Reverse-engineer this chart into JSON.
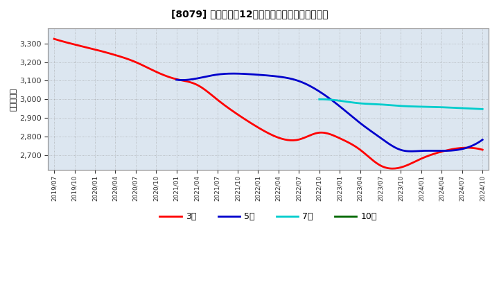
{
  "title": "[8079] 当期純利益12か月移動合計の平均値の推移",
  "ylabel": "（百万円）",
  "background_color": "#ffffff",
  "plot_bg_color": "#dce6f0",
  "grid_color": "#999999",
  "ylim": [
    2620,
    3380
  ],
  "yticks": [
    2700,
    2800,
    2900,
    3000,
    3100,
    3200,
    3300
  ],
  "x_labels": [
    "2019/07",
    "2019/10",
    "2020/01",
    "2020/04",
    "2020/07",
    "2020/10",
    "2021/01",
    "2021/04",
    "2021/07",
    "2021/10",
    "2022/01",
    "2022/04",
    "2022/07",
    "2022/10",
    "2023/01",
    "2023/04",
    "2023/07",
    "2023/10",
    "2024/01",
    "2024/04",
    "2024/07",
    "2024/10"
  ],
  "series_3y": {
    "label": "3年",
    "color": "#ff0000",
    "values": [
      3325,
      3295,
      3268,
      3238,
      3200,
      3148,
      3108,
      3078,
      2998,
      2918,
      2848,
      2793,
      2783,
      2820,
      2790,
      2728,
      2643,
      2633,
      2680,
      2718,
      2738,
      2728
    ]
  },
  "series_5y": {
    "label": "5年",
    "color": "#0000cc",
    "values": [
      null,
      null,
      null,
      null,
      null,
      null,
      3105,
      3112,
      3133,
      3138,
      3132,
      3122,
      3098,
      3042,
      2962,
      2872,
      2792,
      2727,
      2722,
      2722,
      2732,
      2782
    ]
  },
  "series_7y": {
    "label": "7年",
    "color": "#00cccc",
    "values": [
      null,
      null,
      null,
      null,
      null,
      null,
      null,
      null,
      null,
      null,
      null,
      null,
      null,
      3000,
      2992,
      2978,
      2972,
      2964,
      2960,
      2957,
      2952,
      2947
    ]
  },
  "series_10y": {
    "label": "10年",
    "color": "#006600",
    "values": [
      null,
      null,
      null,
      null,
      null,
      null,
      null,
      null,
      null,
      null,
      null,
      null,
      null,
      null,
      null,
      null,
      null,
      null,
      null,
      null,
      null,
      null
    ]
  }
}
